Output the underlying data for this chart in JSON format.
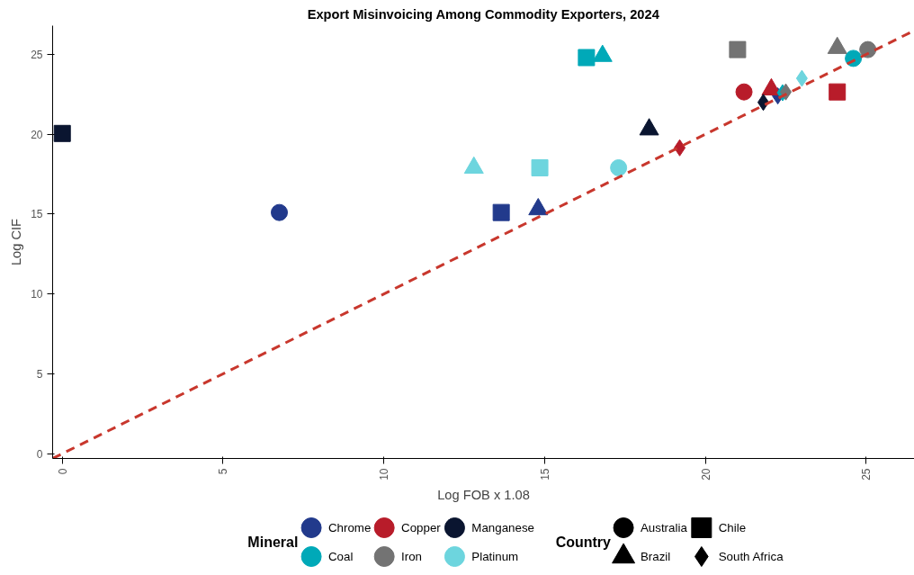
{
  "chart_data": {
    "type": "scatter",
    "title": "Export Misinvoicing Among Commodity Exporters, 2024",
    "xlabel": "Log FOB x 1.08",
    "ylabel": "Log CIF",
    "xlim": [
      -0.3,
      26.5
    ],
    "ylim": [
      -0.3,
      26.8
    ],
    "xticks": [
      0,
      5,
      10,
      15,
      20,
      25
    ],
    "yticks": [
      0,
      5,
      10,
      15,
      20,
      25
    ],
    "grid": false,
    "legend": "bottom",
    "legend_title": [
      "Mineral",
      "Country"
    ],
    "series": [
      {
        "name": "Australia",
        "marker": "circle",
        "color": "#000000"
      },
      {
        "name": "Chile",
        "marker": "square",
        "color": "#000000"
      },
      {
        "name": "Brazil",
        "marker": "triangle",
        "color": "#000000"
      },
      {
        "name": "South Africa",
        "marker": "diamond",
        "color": "#000000"
      },
      {
        "name": "Chrome",
        "color": "#223a8c",
        "x": [
          6.75,
          13.65,
          14.8,
          22.25
        ],
        "values": [
          15.1,
          15.1,
          15.3,
          22.4
        ],
        "marker": [
          "circle",
          "square",
          "triangle",
          "diamond"
        ]
      },
      {
        "name": "Copper",
        "color": "#b81c2a",
        "x": [
          21.2,
          24.1,
          22.05,
          19.2
        ],
        "values": [
          22.65,
          22.65,
          22.8,
          19.15
        ],
        "marker": [
          "circle",
          "square",
          "triangle",
          "diamond"
        ]
      },
      {
        "name": "Manganese",
        "color": "#0a1530",
        "x": [
          0.0,
          18.25,
          21.8
        ],
        "values": [
          20.05,
          20.3,
          22.0
        ],
        "marker": [
          "square",
          "triangle",
          "diamond"
        ]
      },
      {
        "name": "Coal",
        "color": "#00a9b8",
        "x": [
          24.6,
          16.3,
          16.8,
          22.4
        ],
        "values": [
          24.75,
          24.8,
          24.9,
          22.6
        ],
        "marker": [
          "circle",
          "square",
          "triangle",
          "diamond"
        ]
      },
      {
        "name": "Iron",
        "color": "#737373",
        "x": [
          25.05,
          21.0,
          24.1,
          22.5
        ],
        "values": [
          25.3,
          25.3,
          25.4,
          22.65
        ],
        "marker": [
          "circle",
          "square",
          "triangle",
          "diamond"
        ]
      },
      {
        "name": "Platinum",
        "color": "#6dd5de",
        "x": [
          17.3,
          14.85,
          12.8,
          23.0
        ],
        "values": [
          17.9,
          17.9,
          17.9,
          23.5
        ],
        "marker": [
          "circle",
          "square",
          "triangle",
          "diamond"
        ]
      },
      {
        "type": "line",
        "color": "#c8372d",
        "line_style": "dashed",
        "x": [
          -0.3,
          26.5
        ],
        "values": [
          -0.3,
          26.5
        ]
      }
    ]
  }
}
